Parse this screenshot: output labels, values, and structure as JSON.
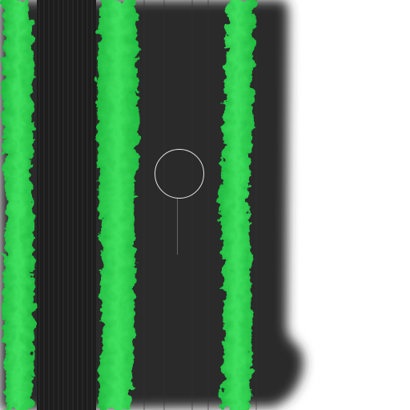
{
  "scene": {
    "background_color": "#ffffff",
    "ground_color": "#2b2b2b",
    "plowed_strip_color": "#1d1d1d",
    "crop_color": "#1fb93f",
    "crop_highlight_color": "#3fe05f",
    "crop_rows": [
      {
        "name": "crop-row-left"
      },
      {
        "name": "crop-row-middle"
      },
      {
        "name": "crop-row-right"
      }
    ]
  },
  "cursor": {
    "icon": "circle-reticle-icon",
    "color": "#e8e8e8"
  }
}
